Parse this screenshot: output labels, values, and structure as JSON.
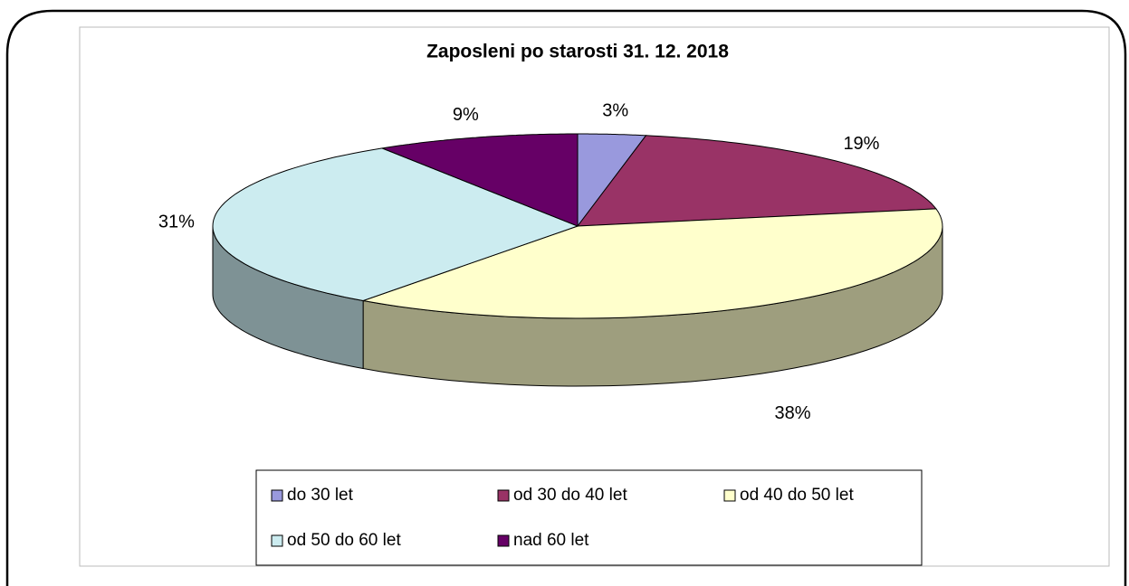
{
  "chart_data": {
    "type": "pie",
    "title": "Zaposleni po starosti 31. 12. 2018",
    "categories": [
      "do 30 let",
      "od 30 do 40 let",
      "od 40 do 50 let",
      "od 50 do 60 let",
      "nad 60 let"
    ],
    "values": [
      3,
      19,
      38,
      31,
      9
    ],
    "value_labels": [
      "3%",
      "19%",
      "38%",
      "31%",
      "9%"
    ],
    "colors": [
      "#9999dd",
      "#993366",
      "#ffffcc",
      "#ccecf0",
      "#660066"
    ],
    "legend": "bottom"
  }
}
